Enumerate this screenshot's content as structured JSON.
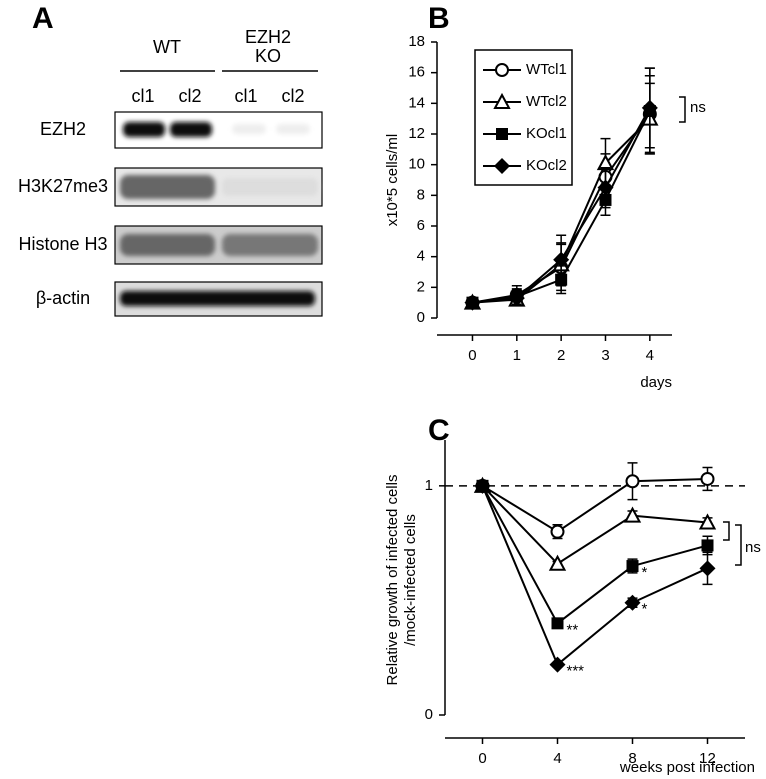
{
  "blot": {
    "panel_label": "A",
    "groups": [
      {
        "lines": [
          "WT"
        ]
      },
      {
        "lines": [
          "EZH2",
          "KO"
        ]
      }
    ],
    "lanes": [
      "cl1",
      "cl2",
      "cl1",
      "cl2"
    ],
    "rows": [
      "EZH2",
      "H3K27me3",
      "Histone H3",
      "β-actin"
    ]
  },
  "chart_data": [
    {
      "type": "line",
      "panel_label": "B",
      "ylabel": "x10*5 cells/ml",
      "xlabel": "days",
      "x": [
        0,
        1,
        2,
        3,
        4
      ],
      "xlim": [
        -0.8,
        4.5
      ],
      "xticks": [
        0,
        1,
        2,
        3,
        4
      ],
      "ylim": [
        0,
        18
      ],
      "yticks": [
        0,
        2,
        4,
        6,
        8,
        10,
        12,
        14,
        16,
        18
      ],
      "legend": "upper left",
      "annotation": "ns",
      "series": [
        {
          "name": "WTcl1",
          "color": "#000000",
          "marker": "circle",
          "values": [
            1,
            1.5,
            3.3,
            9.2,
            13.3
          ],
          "errors": [
            0.2,
            0.6,
            1.5,
            1.5,
            2.5
          ]
        },
        {
          "name": "WTcl2",
          "color": "#000000",
          "marker": "triangle",
          "values": [
            1,
            1.2,
            3.5,
            10.1,
            13.0
          ],
          "errors": [
            0.2,
            0.4,
            1.4,
            1.6,
            2.3
          ]
        },
        {
          "name": "KOcl1",
          "color": "#000000",
          "marker": "square",
          "values": [
            1,
            1.4,
            2.5,
            7.7,
            13.5
          ],
          "errors": [
            0.2,
            0.5,
            0.9,
            1.0,
            2.8
          ]
        },
        {
          "name": "KOcl2",
          "color": "#000000",
          "marker": "diamond",
          "values": [
            1,
            1.3,
            3.8,
            8.5,
            13.7
          ],
          "errors": [
            0.2,
            0.5,
            1.6,
            1.3,
            2.6
          ]
        }
      ]
    },
    {
      "type": "line",
      "panel_label": "C",
      "ylabel": [
        "Relative growth of infected cells",
        "/mock-infected cells"
      ],
      "xlabel": "weeks post infection",
      "x": [
        0,
        4,
        8,
        12
      ],
      "xlim": [
        -2,
        14
      ],
      "xticks": [
        0,
        4,
        8,
        12
      ],
      "ylim": [
        0,
        1.2
      ],
      "yticks": [
        0,
        1
      ],
      "hline": 1,
      "annotation": "ns",
      "series": [
        {
          "name": "WTcl1",
          "color": "#000000",
          "marker": "circle",
          "values": [
            1,
            0.8,
            1.02,
            1.03
          ],
          "errors": [
            0,
            0.03,
            0.08,
            0.05
          ],
          "significance": [
            null,
            null,
            null,
            null
          ]
        },
        {
          "name": "WTcl2",
          "color": "#000000",
          "marker": "triangle",
          "values": [
            1,
            0.66,
            0.87,
            0.84
          ],
          "errors": [
            0,
            0.01,
            0.02,
            0.02
          ],
          "significance": [
            null,
            null,
            null,
            null
          ]
        },
        {
          "name": "KOcl1",
          "color": "#000000",
          "marker": "square",
          "values": [
            1,
            0.4,
            0.65,
            0.74
          ],
          "errors": [
            0,
            0.01,
            0.03,
            0.04
          ],
          "significance": [
            null,
            "**",
            "*",
            null
          ]
        },
        {
          "name": "KOcl2",
          "color": "#000000",
          "marker": "diamond",
          "values": [
            1,
            0.22,
            0.49,
            0.64
          ],
          "errors": [
            0,
            0.01,
            0.02,
            0.07
          ],
          "significance": [
            null,
            "***",
            "*",
            null
          ]
        }
      ]
    }
  ]
}
